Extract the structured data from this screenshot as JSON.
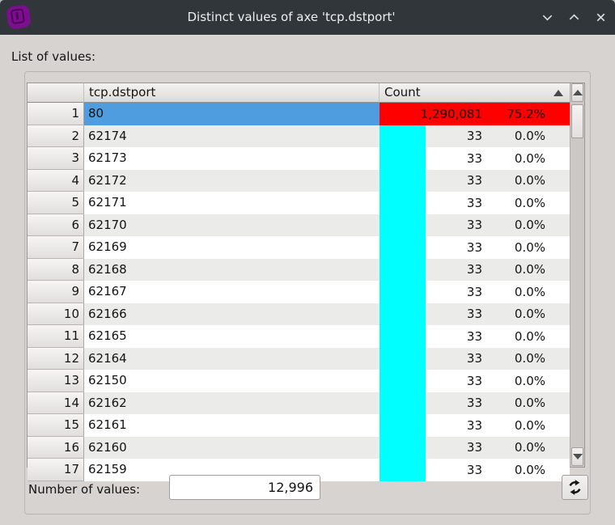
{
  "window": {
    "title": "Distinct values of axe 'tcp.dstport'"
  },
  "titlebar_icons": {
    "app": "app-logo",
    "minimize": "chevron-down",
    "maximize": "chevron-up",
    "close": "x"
  },
  "labels": {
    "list_of_values": "List of values:",
    "number_of_values": "Number of values:"
  },
  "table": {
    "columns": [
      "tcp.dstport",
      "Count"
    ],
    "sort_indicator": "ascending-triangle-on-count",
    "rows": [
      {
        "n": "1",
        "value": "80",
        "count": "1,290,081",
        "pct": "75.2%",
        "bar_color": "#ff0000",
        "bar_full": true,
        "selected": true
      },
      {
        "n": "2",
        "value": "62174",
        "count": "33",
        "pct": "0.0%",
        "bar_color": "#00ffff",
        "bar_full": false
      },
      {
        "n": "3",
        "value": "62173",
        "count": "33",
        "pct": "0.0%",
        "bar_color": "#00ffff",
        "bar_full": false
      },
      {
        "n": "4",
        "value": "62172",
        "count": "33",
        "pct": "0.0%",
        "bar_color": "#00ffff",
        "bar_full": false
      },
      {
        "n": "5",
        "value": "62171",
        "count": "33",
        "pct": "0.0%",
        "bar_color": "#00ffff",
        "bar_full": false
      },
      {
        "n": "6",
        "value": "62170",
        "count": "33",
        "pct": "0.0%",
        "bar_color": "#00ffff",
        "bar_full": false
      },
      {
        "n": "7",
        "value": "62169",
        "count": "33",
        "pct": "0.0%",
        "bar_color": "#00ffff",
        "bar_full": false
      },
      {
        "n": "8",
        "value": "62168",
        "count": "33",
        "pct": "0.0%",
        "bar_color": "#00ffff",
        "bar_full": false
      },
      {
        "n": "9",
        "value": "62167",
        "count": "33",
        "pct": "0.0%",
        "bar_color": "#00ffff",
        "bar_full": false
      },
      {
        "n": "10",
        "value": "62166",
        "count": "33",
        "pct": "0.0%",
        "bar_color": "#00ffff",
        "bar_full": false
      },
      {
        "n": "11",
        "value": "62165",
        "count": "33",
        "pct": "0.0%",
        "bar_color": "#00ffff",
        "bar_full": false
      },
      {
        "n": "12",
        "value": "62164",
        "count": "33",
        "pct": "0.0%",
        "bar_color": "#00ffff",
        "bar_full": false
      },
      {
        "n": "13",
        "value": "62150",
        "count": "33",
        "pct": "0.0%",
        "bar_color": "#00ffff",
        "bar_full": false
      },
      {
        "n": "14",
        "value": "62162",
        "count": "33",
        "pct": "0.0%",
        "bar_color": "#00ffff",
        "bar_full": false
      },
      {
        "n": "15",
        "value": "62161",
        "count": "33",
        "pct": "0.0%",
        "bar_color": "#00ffff",
        "bar_full": false
      },
      {
        "n": "16",
        "value": "62160",
        "count": "33",
        "pct": "0.0%",
        "bar_color": "#00ffff",
        "bar_full": false
      },
      {
        "n": "17",
        "value": "62159",
        "count": "33",
        "pct": "0.0%",
        "bar_color": "#00ffff",
        "bar_full": false
      }
    ]
  },
  "footer": {
    "value_count": "12,996",
    "refresh_icon": "circular-arrows"
  },
  "colors": {
    "titlebar": "#31363b",
    "dialog_bg": "#d7d3d0",
    "selection_blue": "#4f9dde",
    "bar_red": "#ff0000",
    "bar_cyan": "#00ffff",
    "alt_row": "#ebebe9",
    "app_icon_purple": "#7c0e8f"
  }
}
